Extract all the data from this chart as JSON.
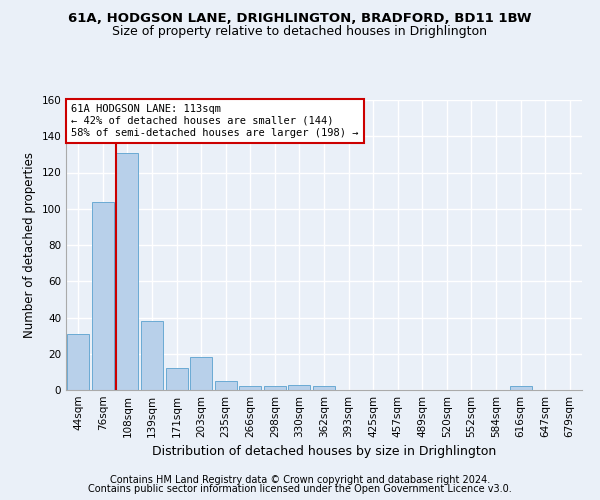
{
  "title_line1": "61A, HODGSON LANE, DRIGHLINGTON, BRADFORD, BD11 1BW",
  "title_line2": "Size of property relative to detached houses in Drighlington",
  "xlabel": "Distribution of detached houses by size in Drighlington",
  "ylabel": "Number of detached properties",
  "bin_labels": [
    "44sqm",
    "76sqm",
    "108sqm",
    "139sqm",
    "171sqm",
    "203sqm",
    "235sqm",
    "266sqm",
    "298sqm",
    "330sqm",
    "362sqm",
    "393sqm",
    "425sqm",
    "457sqm",
    "489sqm",
    "520sqm",
    "552sqm",
    "584sqm",
    "616sqm",
    "647sqm",
    "679sqm"
  ],
  "bar_values": [
    31,
    104,
    131,
    38,
    12,
    18,
    5,
    2,
    2,
    3,
    2,
    0,
    0,
    0,
    0,
    0,
    0,
    0,
    2,
    0,
    0
  ],
  "bar_color": "#b8d0ea",
  "bar_edge_color": "#6aaad4",
  "vline_color": "#cc0000",
  "vline_x_index": 2,
  "ylim": [
    0,
    160
  ],
  "yticks": [
    0,
    20,
    40,
    60,
    80,
    100,
    120,
    140,
    160
  ],
  "annotation_line1": "61A HODGSON LANE: 113sqm",
  "annotation_line2": "← 42% of detached houses are smaller (144)",
  "annotation_line3": "58% of semi-detached houses are larger (198) →",
  "annotation_box_color": "#ffffff",
  "annotation_box_edge": "#cc0000",
  "footnote1": "Contains HM Land Registry data © Crown copyright and database right 2024.",
  "footnote2": "Contains public sector information licensed under the Open Government Licence v3.0.",
  "bg_color": "#eaf0f8",
  "plot_bg_color": "#eaf0f8",
  "grid_color": "#ffffff",
  "title1_fontsize": 9.5,
  "title2_fontsize": 9,
  "xlabel_fontsize": 9,
  "ylabel_fontsize": 8.5,
  "tick_fontsize": 7.5,
  "annot_fontsize": 7.5,
  "footnote_fontsize": 7
}
